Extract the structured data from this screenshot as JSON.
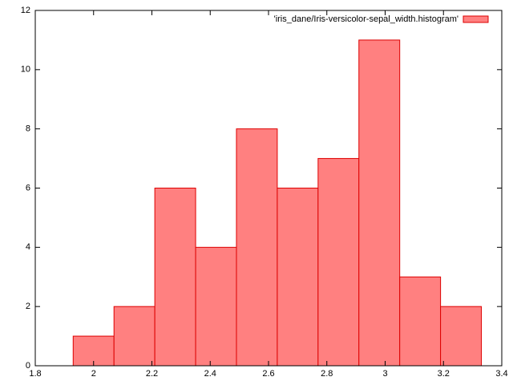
{
  "chart_data": {
    "type": "histogram",
    "bins": [
      1.93,
      2.07,
      2.21,
      2.35,
      2.49,
      2.63,
      2.77,
      2.91,
      3.05,
      3.19,
      3.33
    ],
    "series": [
      {
        "name": "'iris_dane/Iris-versicolor-sepal_width.histogram'",
        "color": "#ff8080",
        "values": [
          1,
          2,
          6,
          4,
          8,
          6,
          7,
          11,
          3,
          2
        ]
      }
    ],
    "xlim": [
      1.8,
      3.4
    ],
    "xticks": [
      1.8,
      2,
      2.2,
      2.4,
      2.6,
      2.8,
      3,
      3.2,
      3.4
    ],
    "ylim": [
      0,
      12
    ],
    "yticks": [
      0,
      2,
      4,
      6,
      8,
      10,
      12
    ],
    "legend": "top-right"
  }
}
